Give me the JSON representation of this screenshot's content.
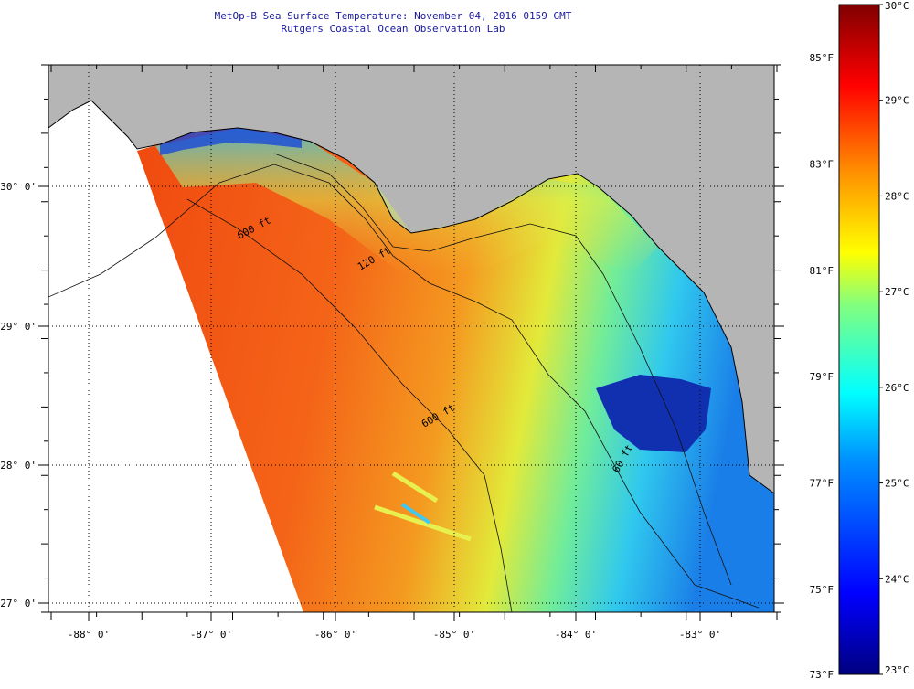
{
  "title": {
    "line1": "MetOp-B Sea Surface Temperature:  November 04, 2016 0159 GMT",
    "line2": "Rutgers Coastal Ocean Observation Lab"
  },
  "map": {
    "lon_range": [
      -88.3,
      -82.6
    ],
    "lat_range": [
      26.93,
      30.85
    ],
    "lon_ticks": [
      {
        "value": -88,
        "label": "-88° 0'"
      },
      {
        "value": -87,
        "label": "-87° 0'"
      },
      {
        "value": -86,
        "label": "-86° 0'"
      },
      {
        "value": -85,
        "label": "-85° 0'"
      },
      {
        "value": -84,
        "label": "-84° 0'"
      },
      {
        "value": -83,
        "label": "-83° 0'"
      }
    ],
    "lat_ticks": [
      {
        "value": 30,
        "label": "30° 0'"
      },
      {
        "value": 29,
        "label": "29° 0'"
      },
      {
        "value": 28,
        "label": "28° 0'"
      },
      {
        "value": 27,
        "label": "27° 0'"
      }
    ],
    "isobath_labels": [
      "60 ft",
      "120 ft",
      "600 ft",
      "600 ft"
    ],
    "land_color": "#b5b5b5",
    "no_data_color": "#ffffff",
    "graticule": "dotted"
  },
  "colorbar": {
    "unit_c": "°C",
    "celsius_range": [
      23,
      30
    ],
    "celsius_labels": [
      "30°C",
      "29°C",
      "28°C",
      "27°C",
      "26°C",
      "25°C",
      "24°C",
      "23°C"
    ],
    "fahrenheit_labels": [
      "85°F",
      "83°F",
      "81°F",
      "79°F",
      "77°F",
      "75°F",
      "73°F"
    ],
    "fahrenheit_values": [
      85,
      83,
      81,
      79,
      77,
      75,
      73
    ],
    "celsius_values": [
      30,
      29,
      28,
      27,
      26,
      25,
      24,
      23
    ],
    "colors": [
      "#000080",
      "#0000ff",
      "#0080ff",
      "#00ffff",
      "#80ff80",
      "#ffff00",
      "#ff8000",
      "#ff0000",
      "#800000"
    ]
  }
}
